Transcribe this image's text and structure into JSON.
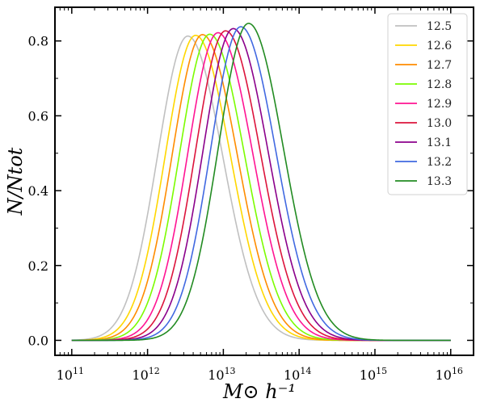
{
  "chart_data": {
    "type": "line",
    "xscale": "log",
    "xlim": [
      60000000000.0,
      2e+16
    ],
    "ylim": [
      -0.04,
      0.89
    ],
    "xlabel": "M⊙ h⁻¹",
    "ylabel": "N/Ntot",
    "x_ticks": [
      {
        "base": "10",
        "exp": "11",
        "value": 100000000000.0
      },
      {
        "base": "10",
        "exp": "12",
        "value": 1000000000000.0
      },
      {
        "base": "10",
        "exp": "13",
        "value": 10000000000000.0
      },
      {
        "base": "10",
        "exp": "14",
        "value": 100000000000000.0
      },
      {
        "base": "10",
        "exp": "15",
        "value": 1000000000000000.0
      },
      {
        "base": "10",
        "exp": "16",
        "value": 1e+16
      }
    ],
    "y_ticks": [
      {
        "label": "0.0",
        "value": 0.0
      },
      {
        "label": "0.2",
        "value": 0.2
      },
      {
        "label": "0.4",
        "value": 0.4
      },
      {
        "label": "0.6",
        "value": 0.6
      },
      {
        "label": "0.8",
        "value": 0.8
      }
    ],
    "legend_position": "top-right",
    "x_range_of_curves": [
      100000000000.0,
      1e+16
    ],
    "series": [
      {
        "name": "12.5",
        "color": "#c0c0c0",
        "peak_x": 3400000000000.0,
        "peak_y": 0.813
      },
      {
        "name": "12.6",
        "color": "#ffd700",
        "peak_x": 4300000000000.0,
        "peak_y": 0.815
      },
      {
        "name": "12.7",
        "color": "#ff8c00",
        "peak_x": 5300000000000.0,
        "peak_y": 0.817
      },
      {
        "name": "12.8",
        "color": "#7cfc00",
        "peak_x": 6600000000000.0,
        "peak_y": 0.818
      },
      {
        "name": "12.9",
        "color": "#ff1493",
        "peak_x": 8500000000000.0,
        "peak_y": 0.822
      },
      {
        "name": "13.0",
        "color": "#dc143c",
        "peak_x": 10700000000000.0,
        "peak_y": 0.827
      },
      {
        "name": "13.1",
        "color": "#8b008b",
        "peak_x": 13500000000000.0,
        "peak_y": 0.833
      },
      {
        "name": "13.2",
        "color": "#4169e1",
        "peak_x": 17000000000000.0,
        "peak_y": 0.838
      },
      {
        "name": "13.3",
        "color": "#228b22",
        "peak_x": 21500000000000.0,
        "peak_y": 0.847
      }
    ]
  }
}
